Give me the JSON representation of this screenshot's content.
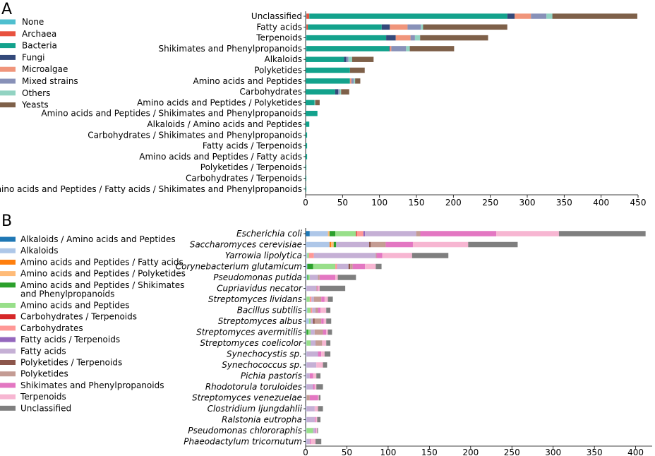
{
  "chart_data": [
    {
      "type": "bar",
      "orientation": "horizontal",
      "stacked": true,
      "panel": "A",
      "xlim": [
        0,
        450
      ],
      "xticks": [
        0,
        50,
        100,
        150,
        200,
        250,
        300,
        350,
        400,
        450
      ],
      "legend": [
        {
          "name": "None",
          "color": "#4fbfcf"
        },
        {
          "name": "Archaea",
          "color": "#e8523f"
        },
        {
          "name": "Bacteria",
          "color": "#13a28c"
        },
        {
          "name": "Fungi",
          "color": "#33497a"
        },
        {
          "name": "Microalgae",
          "color": "#f0957b"
        },
        {
          "name": "Mixed strains",
          "color": "#8891b8"
        },
        {
          "name": "Others",
          "color": "#92d3c2"
        },
        {
          "name": "Yeasts",
          "color": "#7e6049"
        }
      ],
      "categories": [
        "Unclassified",
        "Fatty acids",
        "Terpenoids",
        "Shikimates and Phenylpropanoids",
        "Alkaloids",
        "Polyketides",
        "Amino acids and Peptides",
        "Carbohydrates",
        "Amino acids and Peptides / Polyketides",
        "Amino acids and Peptides / Shikimates and Phenylpropanoids",
        "Alkaloids / Amino acids and Peptides",
        "Carbohydrates / Shikimates and Phenylpropanoids",
        "Fatty acids / Terpenoids",
        "Amino acids and Peptides / Fatty acids",
        "Polyketides / Terpenoids",
        "Carbohydrates / Terpenoids",
        "Amino acids and Peptides / Fatty acids / Shikimates and Phenylpropanoids"
      ],
      "series": [
        {
          "name": "None",
          "values": [
            1,
            1,
            1,
            1,
            0,
            0,
            0,
            0,
            0,
            0,
            0,
            0,
            0,
            0,
            0,
            0,
            0
          ]
        },
        {
          "name": "Archaea",
          "values": [
            4,
            2,
            0,
            0,
            0,
            0,
            0,
            0,
            0,
            0,
            0,
            0,
            0,
            0,
            0,
            0,
            0
          ]
        },
        {
          "name": "Bacteria",
          "values": [
            268,
            100,
            108,
            112,
            52,
            60,
            60,
            40,
            12,
            16,
            5,
            2,
            2,
            2,
            1,
            1,
            1
          ]
        },
        {
          "name": "Fungi",
          "values": [
            10,
            11,
            13,
            1,
            3,
            0,
            0,
            4,
            0,
            0,
            0,
            0,
            0,
            0,
            0,
            0,
            0
          ]
        },
        {
          "name": "Microalgae",
          "values": [
            22,
            24,
            20,
            2,
            0,
            0,
            2,
            0,
            0,
            0,
            0,
            0,
            0,
            0,
            0,
            0,
            0
          ]
        },
        {
          "name": "Mixed strains",
          "values": [
            21,
            18,
            6,
            20,
            3,
            0,
            3,
            2,
            0,
            0,
            0,
            0,
            0,
            0,
            0,
            0,
            0
          ]
        },
        {
          "name": "Others",
          "values": [
            8,
            3,
            7,
            5,
            5,
            0,
            2,
            2,
            1,
            0,
            0,
            0,
            0,
            0,
            0,
            0,
            0
          ]
        },
        {
          "name": "Yeasts",
          "values": [
            115,
            114,
            92,
            60,
            29,
            20,
            7,
            11,
            6,
            0,
            0,
            0,
            0,
            0,
            0,
            0,
            0
          ]
        }
      ]
    },
    {
      "type": "bar",
      "orientation": "horizontal",
      "stacked": true,
      "panel": "B",
      "xlim": [
        0,
        420
      ],
      "xticks": [
        0,
        50,
        100,
        150,
        200,
        250,
        300,
        350,
        400
      ],
      "legend": [
        {
          "name": "Alkaloids / Amino acids and Peptides",
          "color": "#1f77b4"
        },
        {
          "name": "Alkaloids",
          "color": "#aec7e8"
        },
        {
          "name": "Amino acids and Peptides / Fatty acids",
          "color": "#ff7f0e"
        },
        {
          "name": "Amino acids and Peptides / Polyketides",
          "color": "#ffbb78"
        },
        {
          "name": "Amino acids and Peptides / Shikimates\nand Phenylpropanoids",
          "color": "#2ca02c"
        },
        {
          "name": "Amino acids and Peptides",
          "color": "#98df8a"
        },
        {
          "name": "Carbohydrates / Terpenoids",
          "color": "#d62728"
        },
        {
          "name": "Carbohydrates",
          "color": "#ff9896"
        },
        {
          "name": "Fatty acids / Terpenoids",
          "color": "#9467bd"
        },
        {
          "name": "Fatty acids",
          "color": "#c5b0d5"
        },
        {
          "name": "Polyketides / Terpenoids",
          "color": "#8c564b"
        },
        {
          "name": "Polyketides",
          "color": "#c49c94"
        },
        {
          "name": "Shikimates and Phenylpropanoids",
          "color": "#e377c2"
        },
        {
          "name": "Terpenoids",
          "color": "#f7b6d2"
        },
        {
          "name": "Unclassified",
          "color": "#7f7f7f"
        }
      ],
      "categories": [
        "Escherichia coli",
        "Saccharomyces cerevisiae",
        "Yarrowia lipolytica",
        "Corynebacterium glutamicum",
        "Pseudomonas putida",
        "Cupriavidus necator",
        "Streptomyces lividans",
        "Bacillus subtilis",
        "Streptomyces albus",
        "Streptomyces avermitilis",
        "Streptomyces coelicolor",
        "Synechocystis sp.",
        "Synechococcus sp.",
        "Pichia pastoris",
        "Rhodotorula toruloides",
        "Streptomyces venezuelae",
        "Clostridium ljungdahlii",
        "Ralstonia eutropha",
        "Pseudomonas chlororaphis",
        "Phaeodactylum tricornutum"
      ],
      "series": [
        {
          "name": "Alkaloids / Amino acids and Peptides",
          "values": [
            5,
            0,
            0,
            0,
            0,
            0,
            0,
            0,
            0,
            0,
            0,
            0,
            0,
            0,
            0,
            0,
            0,
            0,
            0,
            0
          ]
        },
        {
          "name": "Alkaloids",
          "values": [
            22,
            29,
            2,
            2,
            2,
            1,
            1,
            2,
            4,
            1,
            1,
            1,
            1,
            1,
            1,
            1,
            1,
            1,
            1,
            1
          ]
        },
        {
          "name": "Amino acids and Peptides / Fatty acids",
          "values": [
            0,
            2,
            0,
            0,
            0,
            0,
            0,
            0,
            0,
            0,
            0,
            0,
            0,
            0,
            0,
            0,
            0,
            0,
            0,
            0
          ]
        },
        {
          "name": "Amino acids and Peptides / Polyketides",
          "values": [
            2,
            3,
            0,
            0,
            0,
            0,
            0,
            0,
            0,
            0,
            0,
            0,
            0,
            0,
            0,
            0,
            0,
            0,
            0,
            0
          ]
        },
        {
          "name": "Amino acids and Peptides / Shikimates and Phenylpropanoids",
          "values": [
            7,
            3,
            0,
            7,
            1,
            0,
            0,
            0,
            0,
            2,
            0,
            0,
            0,
            0,
            0,
            0,
            0,
            0,
            0,
            0
          ]
        },
        {
          "name": "Amino acids and Peptides",
          "values": [
            25,
            0,
            2,
            27,
            2,
            0,
            4,
            4,
            2,
            3,
            5,
            0,
            0,
            0,
            0,
            0,
            0,
            0,
            8,
            0
          ]
        },
        {
          "name": "Carbohydrates / Terpenoids",
          "values": [
            1,
            0,
            0,
            0,
            0,
            0,
            0,
            0,
            0,
            0,
            0,
            0,
            0,
            0,
            0,
            0,
            0,
            0,
            0,
            0
          ]
        },
        {
          "name": "Carbohydrates",
          "values": [
            8,
            0,
            6,
            2,
            0,
            0,
            2,
            2,
            0,
            0,
            0,
            0,
            0,
            0,
            0,
            0,
            0,
            0,
            0,
            0
          ]
        },
        {
          "name": "Fatty acids / Terpenoids",
          "values": [
            2,
            0,
            0,
            0,
            0,
            0,
            0,
            0,
            0,
            0,
            0,
            0,
            0,
            0,
            0,
            0,
            0,
            0,
            0,
            0
          ]
        },
        {
          "name": "Fatty acids",
          "values": [
            62,
            40,
            75,
            14,
            10,
            12,
            3,
            4,
            3,
            5,
            6,
            14,
            12,
            4,
            8,
            0,
            10,
            10,
            3,
            4
          ]
        },
        {
          "name": "Polyketides / Terpenoids",
          "values": [
            0,
            2,
            0,
            2,
            0,
            0,
            0,
            0,
            2,
            0,
            0,
            0,
            0,
            0,
            0,
            0,
            0,
            0,
            0,
            0
          ]
        },
        {
          "name": "Polyketides",
          "values": [
            5,
            18,
            1,
            3,
            2,
            1,
            9,
            3,
            8,
            10,
            8,
            0,
            0,
            0,
            0,
            4,
            0,
            0,
            0,
            0
          ]
        },
        {
          "name": "Shikimates and Phenylpropanoids",
          "values": [
            92,
            33,
            7,
            15,
            19,
            1,
            4,
            3,
            3,
            4,
            0,
            4,
            0,
            4,
            2,
            10,
            0,
            1,
            1,
            1
          ]
        },
        {
          "name": "Terpenoids",
          "values": [
            76,
            67,
            36,
            13,
            3,
            2,
            4,
            7,
            3,
            2,
            5,
            4,
            8,
            4,
            2,
            1,
            4,
            2,
            1,
            6
          ]
        },
        {
          "name": "Unclassified",
          "values": [
            105,
            60,
            44,
            7,
            22,
            31,
            6,
            5,
            6,
            5,
            5,
            7,
            5,
            5,
            8,
            2,
            6,
            4,
            1,
            7
          ]
        }
      ]
    }
  ]
}
